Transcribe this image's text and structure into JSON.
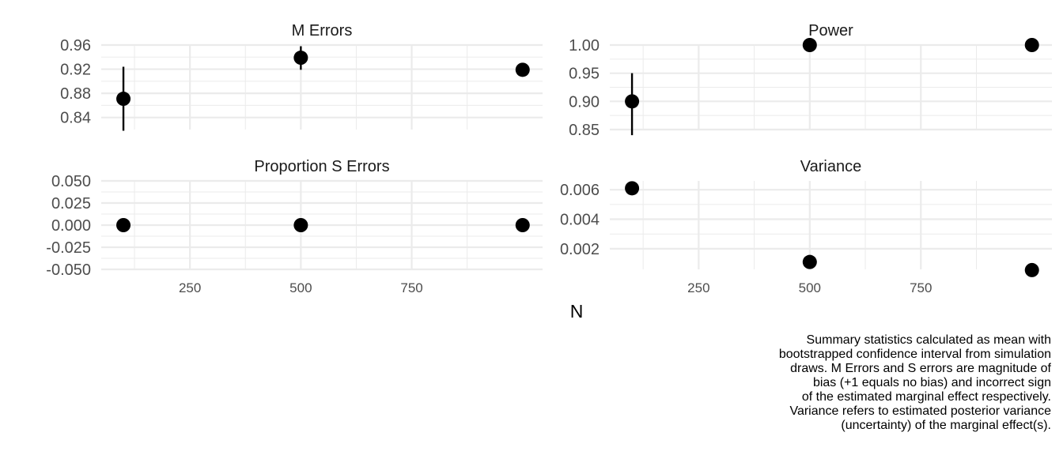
{
  "chart_data": {
    "type": "scatter",
    "layout": "facet-grid 2x2",
    "x_values": [
      100,
      500,
      1000
    ],
    "xlabel": "N",
    "grid": true,
    "panels": [
      {
        "title": "M Errors",
        "ylim": [
          0.82,
          0.96
        ],
        "yticks": [
          "0.84",
          "0.88",
          "0.92",
          "0.96"
        ],
        "ytick_values": [
          0.84,
          0.88,
          0.92,
          0.96
        ],
        "points": [
          {
            "x": 100,
            "y": 0.871,
            "lower": 0.818,
            "upper": 0.924
          },
          {
            "x": 500,
            "y": 0.939,
            "lower": 0.919,
            "upper": 0.958
          },
          {
            "x": 1000,
            "y": 0.919,
            "lower": 0.91,
            "upper": 0.929
          }
        ]
      },
      {
        "title": "Power",
        "ylim": [
          0.85,
          1.0
        ],
        "yticks": [
          "0.85",
          "0.90",
          "0.95",
          "1.00"
        ],
        "ytick_values": [
          0.85,
          0.9,
          0.95,
          1.0
        ],
        "points": [
          {
            "x": 100,
            "y": 0.9,
            "lower": 0.84,
            "upper": 0.95
          },
          {
            "x": 500,
            "y": 1.0,
            "lower": 1.0,
            "upper": 1.0
          },
          {
            "x": 1000,
            "y": 1.0,
            "lower": 1.0,
            "upper": 1.0
          }
        ]
      },
      {
        "title": "Proportion S Errors",
        "ylim": [
          -0.05,
          0.05
        ],
        "yticks": [
          "0.050",
          "0.025",
          "0.000",
          "-0.025",
          "-0.050"
        ],
        "ytick_values": [
          0.05,
          0.025,
          0.0,
          -0.025,
          -0.05
        ],
        "points": [
          {
            "x": 100,
            "y": 0.0,
            "lower": 0.0,
            "upper": 0.0
          },
          {
            "x": 500,
            "y": 0.0,
            "lower": 0.0,
            "upper": 0.0
          },
          {
            "x": 1000,
            "y": 0.0,
            "lower": 0.0,
            "upper": 0.0
          }
        ]
      },
      {
        "title": "Variance",
        "ylim": [
          0.0006,
          0.0066
        ],
        "yticks": [
          "0.002",
          "0.004",
          "0.006"
        ],
        "ytick_values": [
          0.002,
          0.004,
          0.006
        ],
        "points": [
          {
            "x": 100,
            "y": 0.0061,
            "lower": 0.0061,
            "upper": 0.0061
          },
          {
            "x": 500,
            "y": 0.0011,
            "lower": 0.0011,
            "upper": 0.0011
          },
          {
            "x": 1000,
            "y": 0.00055,
            "lower": 0.00055,
            "upper": 0.00055
          }
        ]
      }
    ],
    "xticks": [
      "250",
      "500",
      "750"
    ],
    "xtick_values": [
      250,
      500,
      750
    ],
    "caption": [
      "Summary statistics calculated as mean with",
      "bootstrapped confidence interval from simulation",
      "draws. M Errors and S errors are magnitude of",
      "bias (+1 equals no bias) and incorrect sign",
      "of the estimated marginal effect respectively.",
      "Variance refers to estimated posterior variance",
      "(uncertainty) of the marginal effect(s)."
    ]
  }
}
